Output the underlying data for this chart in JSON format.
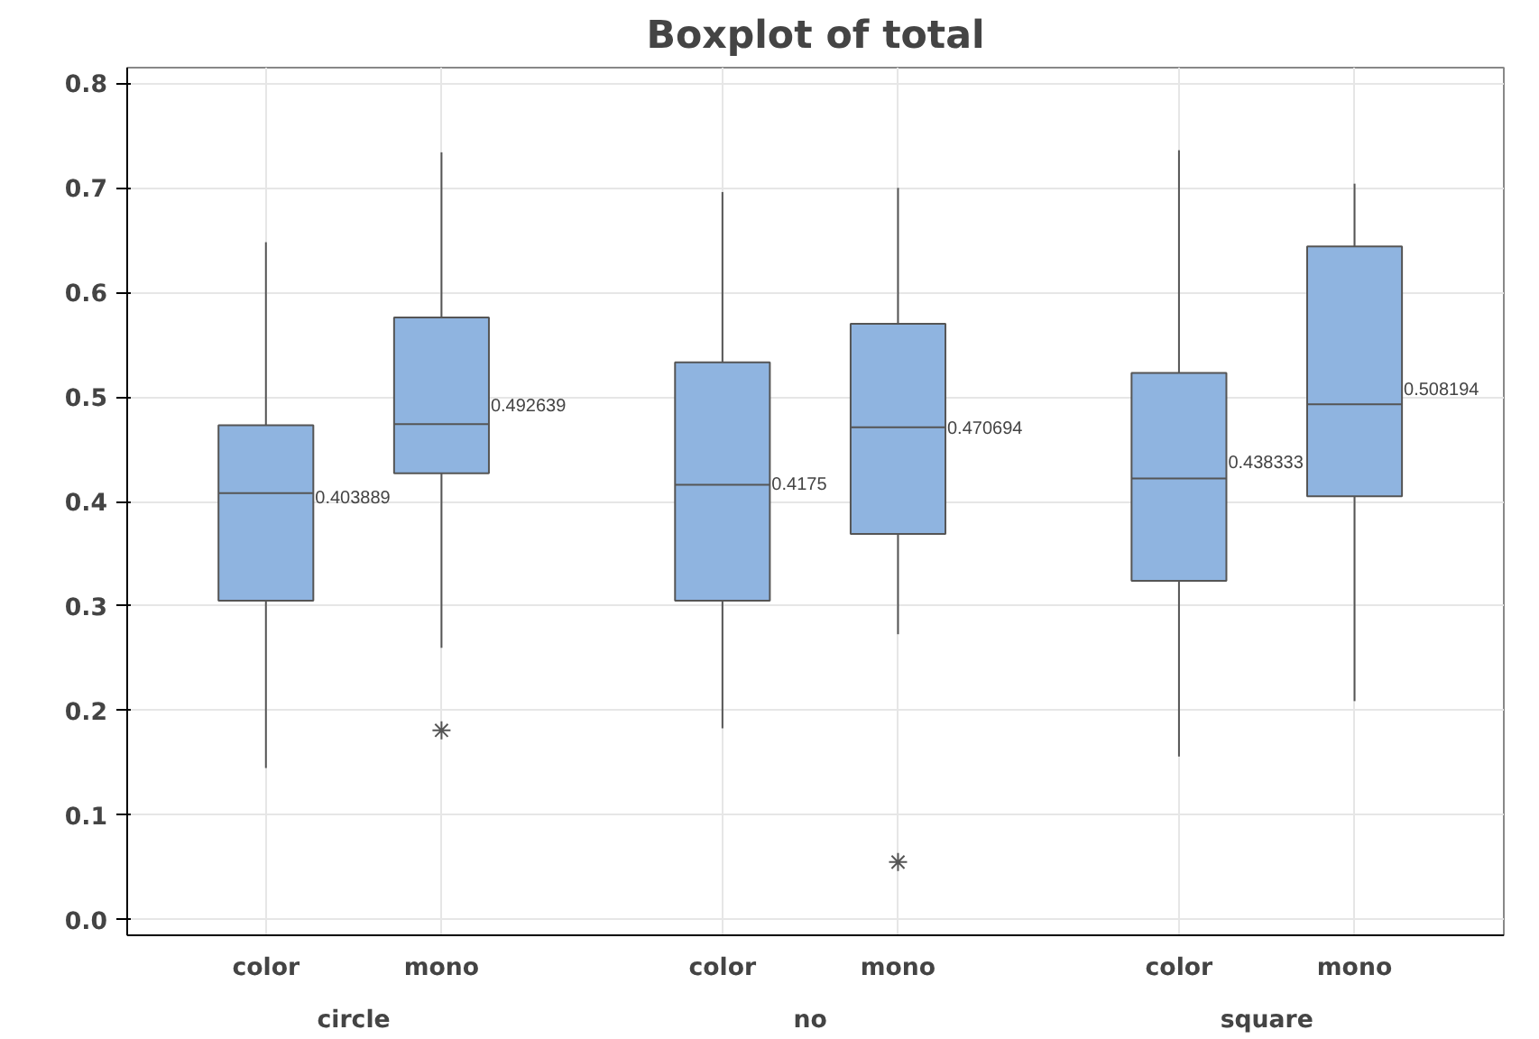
{
  "chart_data": {
    "type": "box",
    "title": "Boxplot of total",
    "categories": [
      "color",
      "mono",
      "color",
      "mono",
      "color",
      "mono"
    ],
    "annotations": [
      "circle",
      "no",
      "square"
    ],
    "boxes": [
      {
        "low": 0.145,
        "q1": 0.305,
        "median": 0.408,
        "q3": 0.473,
        "high": 0.648
      },
      {
        "low": 0.26,
        "q1": 0.427,
        "median": 0.474,
        "q3": 0.576,
        "high": 0.734,
        "outliers": [
          0.181
        ]
      },
      {
        "low": 0.183,
        "q1": 0.305,
        "median": 0.416,
        "q3": 0.533,
        "high": 0.696
      },
      {
        "low": 0.273,
        "q1": 0.369,
        "median": 0.471,
        "q3": 0.57,
        "high": 0.7,
        "outliers": [
          0.055
        ]
      },
      {
        "low": 0.156,
        "q1": 0.324,
        "median": 0.422,
        "q3": 0.523,
        "high": 0.736
      },
      {
        "low": 0.209,
        "q1": 0.405,
        "median": 0.493,
        "q3": 0.644,
        "high": 0.704
      }
    ],
    "value_labels": [
      "0.403889",
      "0.492639",
      "0.4175",
      "0.470694",
      "0.438333",
      "0.508194"
    ],
    "color": "#8fb4e0",
    "ylim": [
      -0.015,
      0.815
    ],
    "yticks": [
      {
        "value": 0,
        "label": "0.0"
      },
      {
        "value": 0.1,
        "label": "0.1"
      },
      {
        "value": 0.2,
        "label": "0.2"
      },
      {
        "value": 0.3,
        "label": "0.3"
      },
      {
        "value": 0.4,
        "label": "0.4"
      },
      {
        "value": 0.5,
        "label": "0.5"
      },
      {
        "value": 0.6,
        "label": "0.6"
      },
      {
        "value": 0.7,
        "label": "0.7"
      },
      {
        "value": 0.8,
        "label": "0.8"
      }
    ],
    "grid": true,
    "marker": "cross"
  }
}
